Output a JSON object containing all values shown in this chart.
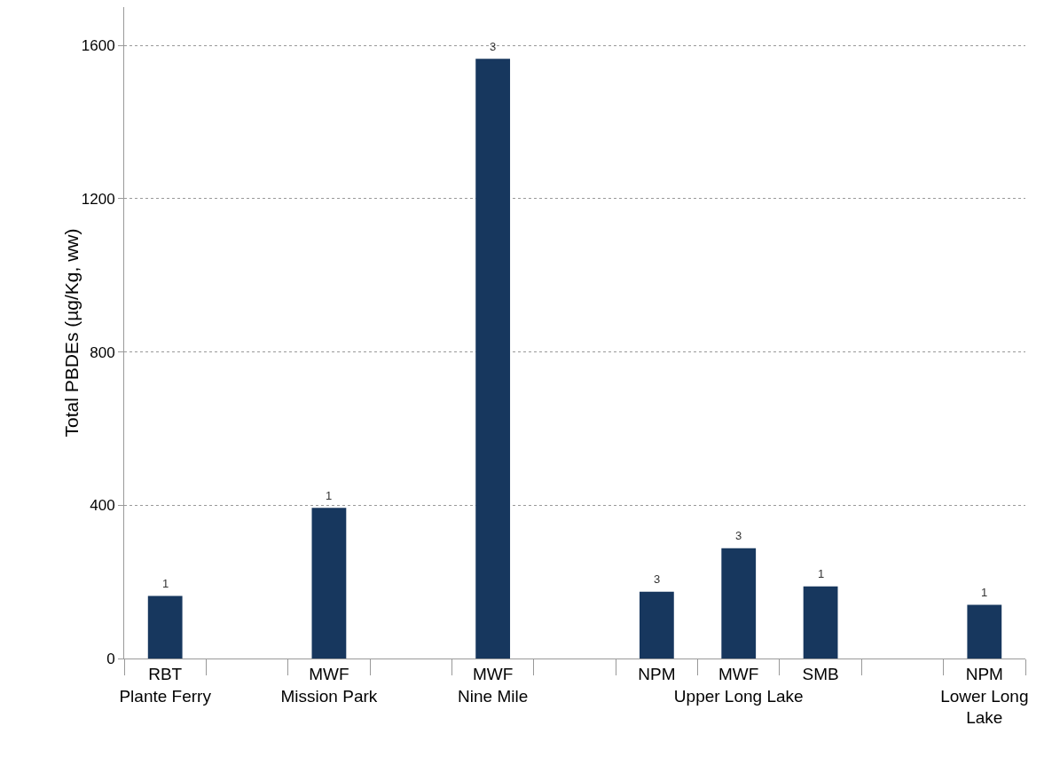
{
  "chart_data": {
    "type": "bar",
    "ylabel": "Total PBDEs (µg/Kg, ww)",
    "categories": [
      "RBT\nPlante Ferry",
      null,
      "MWF\nMission Park",
      null,
      "MWF\nNine Mile",
      null,
      "NPM",
      "MWF\nUpper Long Lake",
      "SMB",
      null,
      "NPM\nLower Long\nLake"
    ],
    "values": [
      163,
      null,
      393,
      null,
      1565,
      null,
      174,
      288,
      188,
      null,
      140
    ],
    "annotations": [
      {
        "text": "1",
        "x": "RBT\nPlante Ferry",
        "y": 163
      },
      {
        "text": "1",
        "x": "MWF\nMission Park",
        "y": 393
      },
      {
        "text": "3",
        "x": "MWF\nNine Mile",
        "y": 1565
      },
      {
        "text": "3",
        "x": "NPM",
        "y": 174
      },
      {
        "text": "3",
        "x": "MWF\nUpper Long Lake",
        "y": 288
      },
      {
        "text": "1",
        "x": "SMB",
        "y": 188
      },
      {
        "text": "1",
        "x": "NPM\nLower Long\nLake",
        "y": 140
      }
    ],
    "color": "#17375e",
    "ylim": [
      0,
      1700
    ],
    "yticks": [
      0,
      400,
      800,
      1200,
      1600
    ],
    "grid": "y",
    "legend": false
  }
}
